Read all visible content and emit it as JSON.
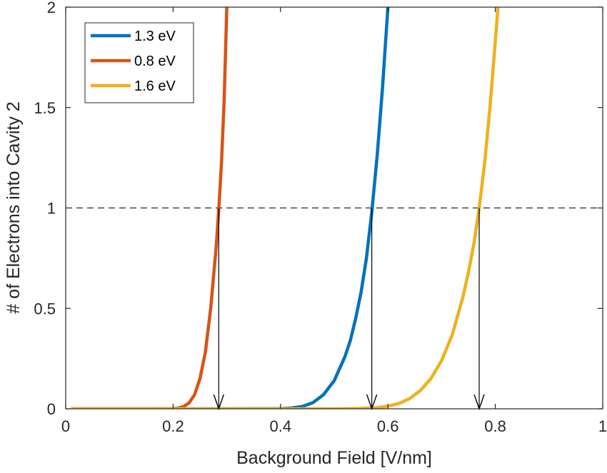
{
  "chart_data": {
    "type": "line",
    "title": "",
    "xlabel": "Background Field [V/nm]",
    "ylabel": "# of Electrons into Cavity 2",
    "xlim": [
      0,
      1
    ],
    "ylim": [
      0,
      2
    ],
    "xticks": [
      0,
      0.2,
      0.4,
      0.6,
      0.8,
      1
    ],
    "xtick_labels": [
      "0",
      "0.2",
      "0.4",
      "0.6",
      "0.8",
      "1"
    ],
    "yticks": [
      0,
      0.5,
      1,
      1.5,
      2
    ],
    "ytick_labels": [
      "0",
      "0.5",
      "1",
      "1.5",
      "2"
    ],
    "grid": false,
    "legend_position": "top-left",
    "series": [
      {
        "name": "1.3 eV",
        "color": "#0072BD",
        "x": [
          0.01,
          0.3,
          0.4,
          0.42,
          0.44,
          0.46,
          0.48,
          0.5,
          0.52,
          0.53,
          0.54,
          0.55,
          0.56,
          0.57,
          0.58,
          0.59,
          0.6
        ],
        "y": [
          0,
          0,
          0.001,
          0.004,
          0.011,
          0.03,
          0.07,
          0.14,
          0.26,
          0.34,
          0.45,
          0.58,
          0.75,
          0.98,
          1.26,
          1.6,
          2.0
        ]
      },
      {
        "name": "0.8 eV",
        "color": "#D95319",
        "x": [
          0.01,
          0.15,
          0.2,
          0.21,
          0.22,
          0.23,
          0.24,
          0.25,
          0.26,
          0.27,
          0.28,
          0.285,
          0.29,
          0.295,
          0.3
        ],
        "y": [
          0,
          0,
          0.001,
          0.004,
          0.012,
          0.03,
          0.07,
          0.15,
          0.28,
          0.5,
          0.8,
          0.99,
          1.22,
          1.53,
          2.0
        ]
      },
      {
        "name": "1.6 eV",
        "color": "#EDB120",
        "x": [
          0.01,
          0.5,
          0.55,
          0.58,
          0.6,
          0.62,
          0.64,
          0.66,
          0.68,
          0.7,
          0.72,
          0.74,
          0.75,
          0.76,
          0.77,
          0.78,
          0.79,
          0.8,
          0.805
        ],
        "y": [
          0,
          0,
          0.002,
          0.006,
          0.013,
          0.026,
          0.05,
          0.09,
          0.15,
          0.24,
          0.37,
          0.56,
          0.68,
          0.82,
          1.0,
          1.22,
          1.5,
          1.83,
          2.0
        ]
      }
    ],
    "annotations": {
      "reference_line": {
        "y": 1,
        "style": "dashed",
        "color": "#000000"
      },
      "arrows": [
        {
          "x": 0.285,
          "from_y": 1,
          "to_y": 0
        },
        {
          "x": 0.57,
          "from_y": 1,
          "to_y": 0
        },
        {
          "x": 0.77,
          "from_y": 1,
          "to_y": 0
        }
      ]
    }
  }
}
